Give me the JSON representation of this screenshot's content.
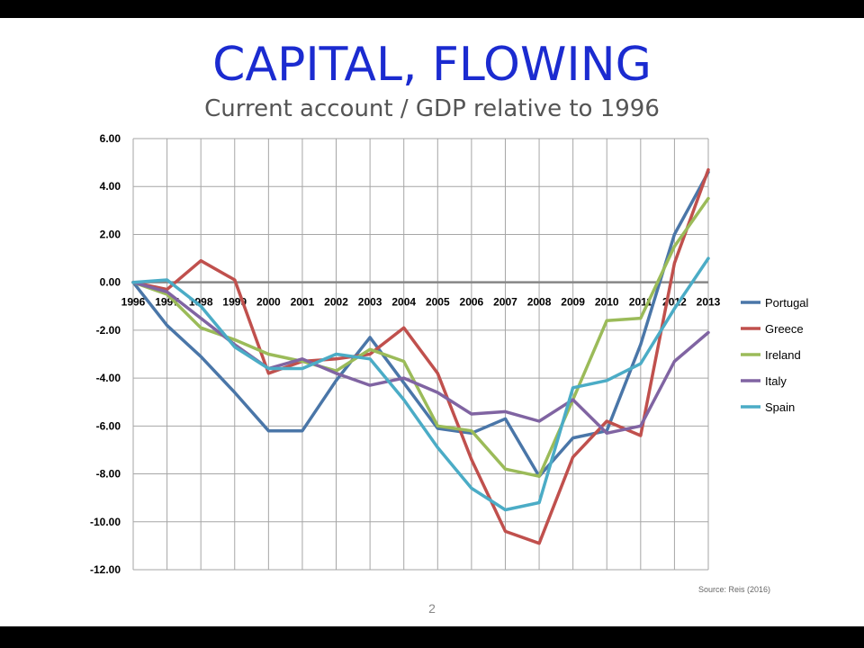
{
  "slide": {
    "title": "CAPITAL, FLOWING",
    "subtitle": "Current account / GDP relative to 1996",
    "source": "Source: Reis (2016)",
    "page_number": "2"
  },
  "chart_data": {
    "type": "line",
    "title": "",
    "xlabel": "",
    "ylabel": "",
    "x": [
      "1996",
      "1997",
      "1998",
      "1999",
      "2000",
      "2001",
      "2002",
      "2003",
      "2004",
      "2005",
      "2006",
      "2007",
      "2008",
      "2009",
      "2010",
      "2011",
      "2012",
      "2013"
    ],
    "ylim": [
      -12,
      6
    ],
    "yticks": [
      "6.00",
      "4.00",
      "2.00",
      "0.00",
      "-2.00",
      "-4.00",
      "-6.00",
      "-8.00",
      "-10.00",
      "-12.00"
    ],
    "ytick_values": [
      6,
      4,
      2,
      0,
      -2,
      -4,
      -6,
      -8,
      -10,
      -12
    ],
    "grid": true,
    "legend_position": "right",
    "series": [
      {
        "name": "Portugal",
        "color": "#4a76a8",
        "values": [
          0,
          -1.8,
          -3.1,
          -4.6,
          -6.2,
          -6.2,
          -4.1,
          -2.3,
          -4.2,
          -6.1,
          -6.3,
          -5.7,
          -8.1,
          -6.5,
          -6.2,
          -2.6,
          2.0,
          4.6
        ]
      },
      {
        "name": "Greece",
        "color": "#c0504d",
        "values": [
          0,
          -0.3,
          0.9,
          0.1,
          -3.8,
          -3.3,
          -3.2,
          -3.0,
          -1.9,
          -3.8,
          -7.4,
          -10.4,
          -10.9,
          -7.3,
          -5.8,
          -6.4,
          0.8,
          4.7
        ]
      },
      {
        "name": "Ireland",
        "color": "#9bbb59",
        "values": [
          0,
          -0.5,
          -1.9,
          -2.4,
          -3.0,
          -3.3,
          -3.7,
          -2.8,
          -3.3,
          -6.0,
          -6.2,
          -7.8,
          -8.1,
          -4.9,
          -1.6,
          -1.5,
          1.5,
          3.5
        ]
      },
      {
        "name": "Italy",
        "color": "#8064a2",
        "values": [
          0,
          -0.4,
          -1.5,
          -2.6,
          -3.6,
          -3.2,
          -3.8,
          -4.3,
          -4.0,
          -4.6,
          -5.5,
          -5.4,
          -5.8,
          -4.9,
          -6.3,
          -6.0,
          -3.3,
          -2.1
        ]
      },
      {
        "name": "Spain",
        "color": "#4bacc6",
        "values": [
          0,
          0.1,
          -1.0,
          -2.7,
          -3.6,
          -3.6,
          -3.0,
          -3.2,
          -4.9,
          -6.9,
          -8.6,
          -9.5,
          -9.2,
          -4.4,
          -4.1,
          -3.4,
          -1.1,
          1.0
        ]
      }
    ]
  }
}
